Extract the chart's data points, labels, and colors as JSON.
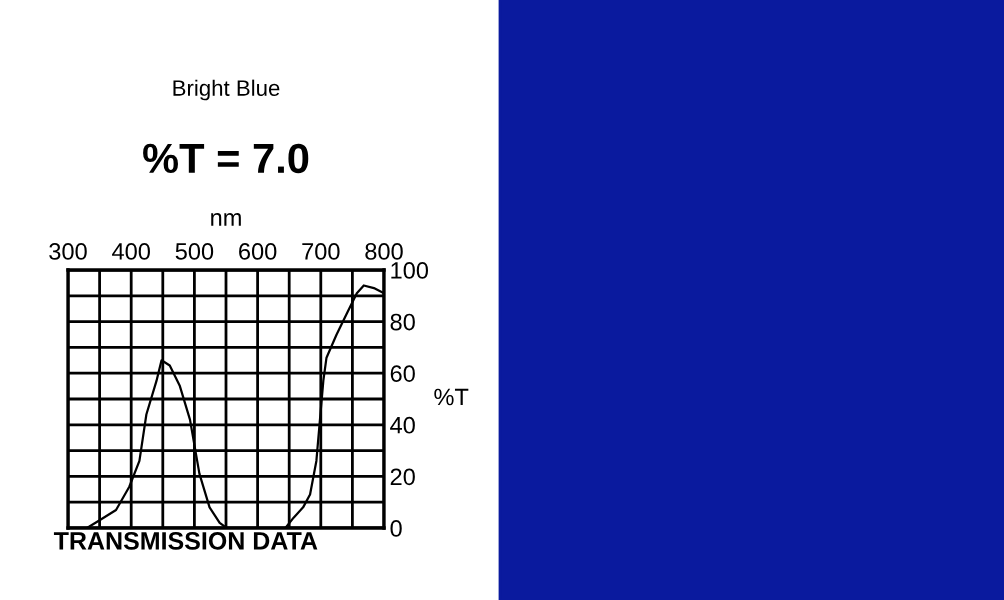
{
  "chart_data": {
    "type": "line",
    "title": "%T = 7.0",
    "subtitle": "Bright Blue",
    "xlabel": "nm",
    "ylabel": "%T",
    "annotations": [
      "TRANSMISSION DATA"
    ],
    "series": [
      {
        "color": "#000000",
        "x": [
          330,
          350,
          376,
          397,
          413,
          424,
          440,
          448,
          461,
          477,
          493,
          508,
          524,
          540,
          551,
          644,
          657,
          672,
          683,
          693,
          704,
          709,
          725,
          741,
          757,
          768,
          784,
          800
        ],
        "values": [
          0,
          3,
          7,
          16,
          26,
          44,
          57,
          65,
          63,
          55,
          42,
          21,
          8,
          2,
          0,
          0,
          4,
          8,
          13,
          26,
          57,
          66,
          75,
          83,
          91,
          94,
          93,
          91
        ]
      }
    ],
    "xlim": [
      300,
      800
    ],
    "ylim": [
      0,
      100
    ],
    "xticks": [
      300,
      {
        "value": 350,
        "label": null
      },
      400,
      {
        "value": 450,
        "label": null
      },
      500,
      {
        "value": 550,
        "label": null
      },
      600,
      {
        "value": 650,
        "label": null
      },
      700,
      {
        "value": 750,
        "label": null
      },
      800
    ],
    "yticks": [
      0,
      {
        "value": 10,
        "label": null
      },
      20,
      {
        "value": 30,
        "label": null
      },
      40,
      {
        "value": 50,
        "label": null
      },
      60,
      {
        "value": 70,
        "label": null
      },
      80,
      {
        "value": 90,
        "label": null
      },
      100
    ],
    "grid": true,
    "legend": false,
    "line_style": "solid",
    "marker": "none"
  }
}
